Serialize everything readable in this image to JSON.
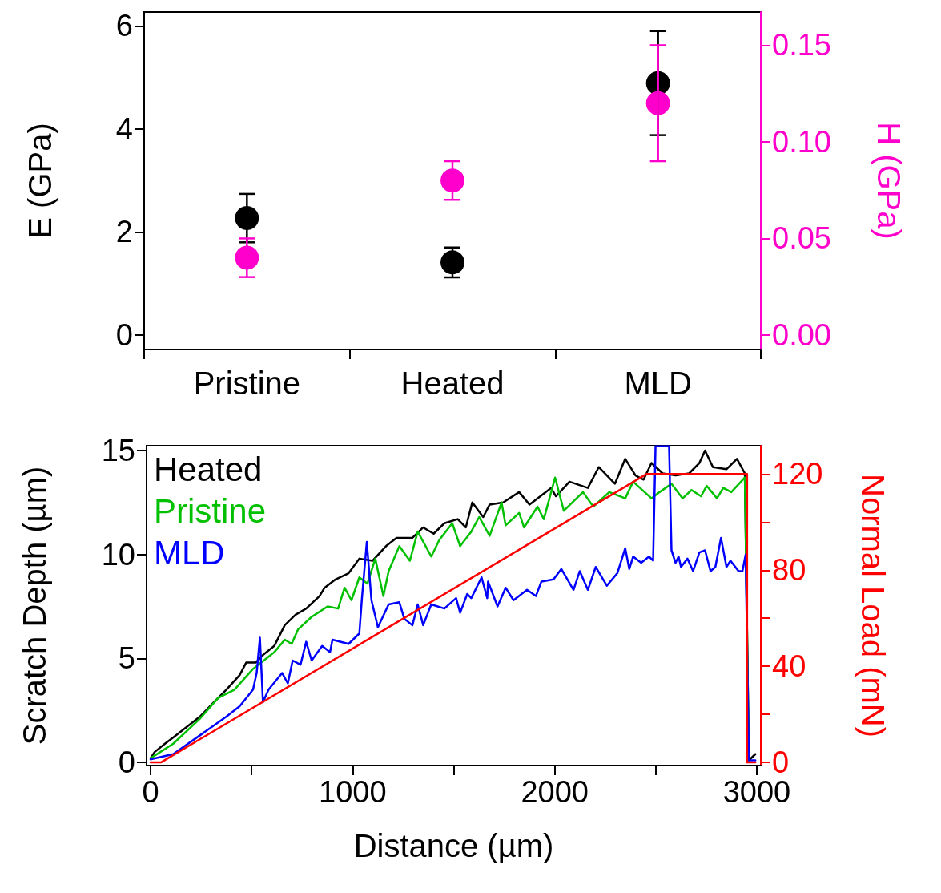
{
  "chart_data": [
    {
      "type": "scatter",
      "ylabel": "E (GPa)",
      "y2label": "H (GPa)",
      "categories": [
        "Pristine",
        "Heated",
        "MLD"
      ],
      "ylim": [
        -0.28,
        6.27
      ],
      "yticks": [
        0,
        2,
        4,
        6
      ],
      "y2lim": [
        -0.0075,
        0.1672
      ],
      "y2ticks": [
        {
          "value": 0,
          "label": "0.00"
        },
        {
          "value": 0.05,
          "label": "0.05"
        },
        {
          "value": 0.1,
          "label": "0.10"
        },
        {
          "value": 0.15,
          "label": "0.15"
        }
      ],
      "marker": "circle",
      "grid": false,
      "legend": false,
      "series": [
        {
          "color": "#000000",
          "values": [
            2.27,
            1.41,
            4.89
          ],
          "errors": [
            [
              1.8,
              2.74
            ],
            [
              1.12,
              1.7
            ],
            [
              3.88,
              5.9
            ]
          ]
        },
        {
          "color": "#ff00cc",
          "axis": "y2",
          "values": [
            0.04,
            0.08,
            0.12
          ],
          "errors": [
            [
              0.03,
              0.05
            ],
            [
              0.07,
              0.09
            ],
            [
              0.09,
              0.15
            ]
          ]
        }
      ]
    },
    {
      "type": "line",
      "xlabel": "Distance (µm)",
      "ylabel": "Scratch Depth (µm)",
      "y2label": "Normal Load (mN)",
      "xlim": [
        -20,
        3020
      ],
      "xticks": [
        0,
        {
          "value": 500,
          "label": null
        },
        1000,
        {
          "value": 1500,
          "label": null
        },
        2000,
        {
          "value": 2500,
          "label": null
        },
        3000
      ],
      "ylim": [
        -0.15,
        15.23
      ],
      "yticks": [
        0,
        5,
        10,
        15
      ],
      "y2lim": [
        -1.3,
        131.8
      ],
      "y2ticks": [
        0,
        {
          "value": 20,
          "label": null
        },
        40,
        {
          "value": 60,
          "label": null
        },
        80,
        {
          "value": 100,
          "label": null
        },
        120
      ],
      "marker": "none",
      "line_style": "solid",
      "grid": false,
      "legend": "top left",
      "series": [
        {
          "name": "Heated",
          "color": "#000000",
          "x": [
            0,
            20,
            71,
            112,
            178,
            244,
            309,
            375,
            441,
            473,
            520,
            560,
            612,
            664,
            717,
            770,
            836,
            861,
            915,
            980,
            1033,
            1099,
            1165,
            1217,
            1296,
            1349,
            1401,
            1454,
            1520,
            1560,
            1592,
            1646,
            1678,
            1745,
            1824,
            1875,
            1982,
            2006,
            2073,
            2164,
            2218,
            2298,
            2349,
            2400,
            2440,
            2479,
            2534,
            2598,
            2665,
            2716,
            2744,
            2783,
            2850,
            2902,
            2941,
            2961,
            2993
          ],
          "values": [
            0.2,
            0.5,
            0.9,
            1.2,
            1.7,
            2.2,
            2.85,
            3.5,
            4.2,
            4.8,
            4.8,
            5.2,
            5.6,
            6.6,
            7.1,
            7.4,
            8.0,
            8.4,
            8.8,
            9.1,
            9.8,
            9.7,
            10.4,
            10.8,
            10.8,
            11.3,
            11.0,
            11.5,
            11.7,
            11.3,
            12.5,
            11.8,
            12.4,
            12.5,
            13.0,
            12.4,
            13.2,
            12.8,
            13.5,
            13.2,
            14.2,
            13.4,
            14.6,
            13.8,
            13.6,
            14.4,
            13.9,
            13.8,
            13.9,
            14.4,
            15.0,
            14.2,
            14.1,
            14.6,
            13.9,
            0.1,
            0.4
          ]
        },
        {
          "name": "Pristine",
          "color": "#00c000",
          "x": [
            0,
            112,
            244,
            335,
            415,
            507,
            560,
            612,
            664,
            698,
            730,
            797,
            876,
            928,
            960,
            994,
            1033,
            1073,
            1112,
            1152,
            1178,
            1231,
            1283,
            1322,
            1389,
            1429,
            1493,
            1532,
            1587,
            1626,
            1678,
            1737,
            1757,
            1824,
            1848,
            1915,
            1946,
            2002,
            2045,
            2140,
            2191,
            2270,
            2349,
            2388,
            2479,
            2519,
            2578,
            2633,
            2677,
            2724,
            2752,
            2803,
            2834,
            2874,
            2941,
            2961
          ],
          "values": [
            0.2,
            0.9,
            2.1,
            3.1,
            3.5,
            4.5,
            4.9,
            5.3,
            5.9,
            5.7,
            6.4,
            7.0,
            7.5,
            7.4,
            8.4,
            7.8,
            8.9,
            8.6,
            9.8,
            8.0,
            9.2,
            10.4,
            9.7,
            11.1,
            9.9,
            10.7,
            11.5,
            10.4,
            11.1,
            11.8,
            10.9,
            12.5,
            11.4,
            12.0,
            11.3,
            12.3,
            11.7,
            13.7,
            12.1,
            13.0,
            12.3,
            13.0,
            12.7,
            13.5,
            12.7,
            13.0,
            13.4,
            12.7,
            13.1,
            12.8,
            13.3,
            12.7,
            13.2,
            13.0,
            13.7,
            0.1
          ]
        },
        {
          "name": "MLD",
          "color": "#0000ff",
          "x": [
            0,
            112,
            244,
            375,
            441,
            507,
            525,
            541,
            556,
            584,
            651,
            679,
            703,
            742,
            770,
            797,
            849,
            888,
            900,
            980,
            1033,
            1046,
            1070,
            1093,
            1125,
            1178,
            1231,
            1256,
            1296,
            1322,
            1349,
            1389,
            1454,
            1512,
            1532,
            1567,
            1587,
            1638,
            1666,
            1670,
            1717,
            1757,
            1796,
            1863,
            1907,
            1934,
            1994,
            2033,
            2093,
            2124,
            2164,
            2203,
            2258,
            2310,
            2349,
            2369,
            2388,
            2428,
            2467,
            2487,
            2499,
            2566,
            2578,
            2598,
            2613,
            2625,
            2657,
            2685,
            2716,
            2744,
            2771,
            2795,
            2823,
            2850,
            2870,
            2910,
            2929,
            2945,
            2961,
            2993
          ],
          "values": [
            0.15,
            0.4,
            1.3,
            2.2,
            2.7,
            3.5,
            4.3,
            6.0,
            2.9,
            3.5,
            4.3,
            3.8,
            4.9,
            4.7,
            5.8,
            4.9,
            5.6,
            5.3,
            5.9,
            5.7,
            6.2,
            7.9,
            10.6,
            7.8,
            6.5,
            7.6,
            7.7,
            6.9,
            6.6,
            7.6,
            6.6,
            7.6,
            7.4,
            7.9,
            7.2,
            8.1,
            7.9,
            8.9,
            7.9,
            8.7,
            7.5,
            8.4,
            7.8,
            8.3,
            8.0,
            8.7,
            8.8,
            9.3,
            8.3,
            9.2,
            8.3,
            9.4,
            8.5,
            9.1,
            10.3,
            9.3,
            9.9,
            9.6,
            9.9,
            9.7,
            15.2,
            15.2,
            10.2,
            9.6,
            9.9,
            9.4,
            9.8,
            9.2,
            10.1,
            10.2,
            9.2,
            9.4,
            10.8,
            9.4,
            9.7,
            9.2,
            9.2,
            10.0,
            0.1,
            0.1
          ]
        },
        {
          "color": "#ff0000",
          "axis": "y2",
          "x": [
            0,
            51,
            2454,
            2952,
            2952,
            2993
          ],
          "values": [
            0,
            0,
            120,
            120,
            0,
            0
          ]
        }
      ]
    }
  ]
}
